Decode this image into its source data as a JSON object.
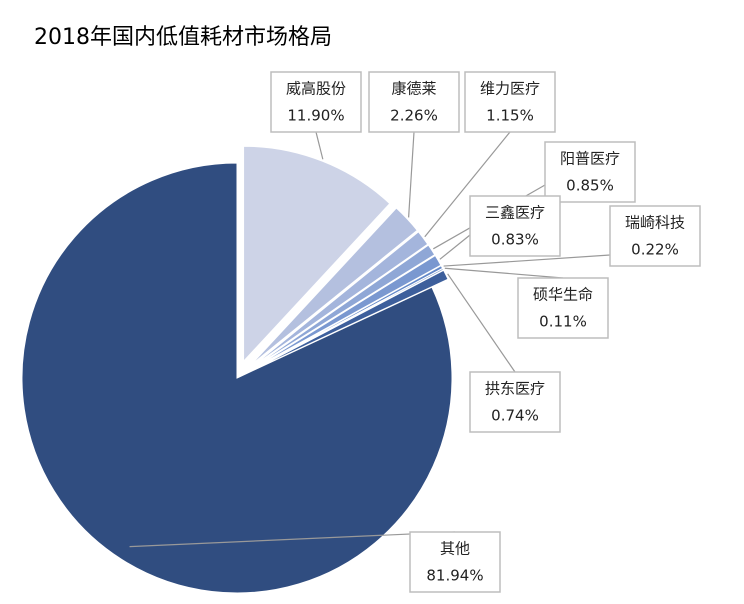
{
  "chart_data": {
    "type": "pie",
    "title": "2018年国内低值耗材市场格局",
    "categories": [
      "威高股份",
      "康德莱",
      "维力医疗",
      "阳普医疗",
      "三鑫医疗",
      "瑞崎科技",
      "硕华生命",
      "拱东医疗",
      "其他"
    ],
    "values": [
      11.9,
      2.26,
      1.15,
      0.85,
      0.83,
      0.22,
      0.11,
      0.74,
      81.94
    ],
    "value_labels": [
      "11.90%",
      "2.26%",
      "1.15%",
      "0.85%",
      "0.83%",
      "0.22%",
      "0.11%",
      "0.74%",
      "81.94%"
    ],
    "colors": [
      "#cdd3e7",
      "#b4c0df",
      "#a4b5dc",
      "#8fa7d6",
      "#7a98d0",
      "#6388c8",
      "#4a72b5",
      "#3d5f9c",
      "#304d80"
    ]
  }
}
